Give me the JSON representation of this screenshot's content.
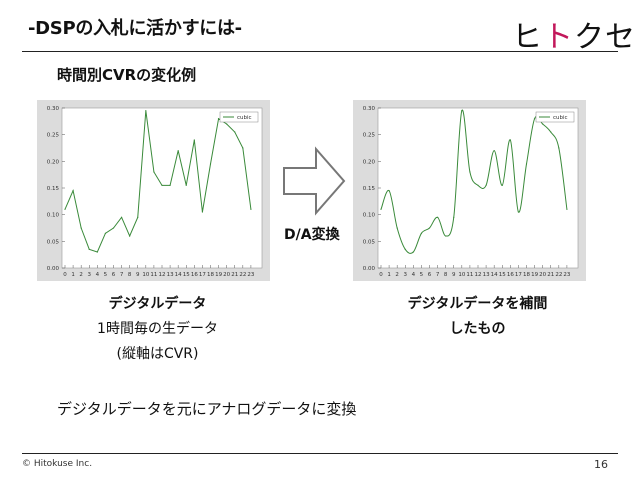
{
  "slide": {
    "title": "-DSPの入札に活かすには-",
    "logo": [
      "ヒ",
      "ト",
      "ク",
      "セ"
    ],
    "subtitle": "時間別CVRの変化例",
    "transform_label": "D/A変換",
    "caption_left": [
      "デジタルデータ",
      "1時間毎の生データ",
      "(縦軸はCVR)"
    ],
    "caption_right": [
      "デジタルデータを補間",
      "したもの"
    ],
    "note": "デジタルデータを元にアナログデータに変換",
    "footer": "© Hitokuse Inc.",
    "page_number": "16"
  },
  "colors": {
    "line": "#3a8a3a",
    "plot_bg": "#ffffff",
    "frame_bg": "#dcdcdc",
    "logo_accent": "#c2185b"
  },
  "chart_data": [
    {
      "type": "line",
      "interpolation": "linear",
      "legend": "cubic",
      "legend_position": "top-right",
      "x": [
        0,
        1,
        2,
        3,
        4,
        5,
        6,
        7,
        8,
        9,
        10,
        11,
        12,
        13,
        14,
        15,
        16,
        17,
        18,
        19,
        20,
        21,
        22,
        23
      ],
      "values": [
        0.11,
        0.145,
        0.075,
        0.035,
        0.03,
        0.065,
        0.075,
        0.095,
        0.06,
        0.095,
        0.295,
        0.18,
        0.155,
        0.155,
        0.22,
        0.155,
        0.24,
        0.105,
        0.195,
        0.28,
        0.27,
        0.255,
        0.225,
        0.11
      ],
      "ylim": [
        0,
        0.3
      ],
      "yticks": [
        "0.00",
        "0.05",
        "0.10",
        "0.15",
        "0.20",
        "0.25",
        "0.30"
      ],
      "xticks": [
        "0",
        "1",
        "2",
        "3",
        "4",
        "5",
        "6",
        "7",
        "8",
        "9",
        "10",
        "11",
        "12",
        "13",
        "14",
        "15",
        "16",
        "17",
        "18",
        "19",
        "20",
        "21",
        "22",
        "23"
      ]
    },
    {
      "type": "line",
      "interpolation": "cubic",
      "legend": "cubic",
      "legend_position": "top-right",
      "x": [
        0,
        1,
        2,
        3,
        4,
        5,
        6,
        7,
        8,
        9,
        10,
        11,
        12,
        13,
        14,
        15,
        16,
        17,
        18,
        19,
        20,
        21,
        22,
        23
      ],
      "values": [
        0.11,
        0.145,
        0.075,
        0.035,
        0.03,
        0.065,
        0.075,
        0.095,
        0.06,
        0.095,
        0.295,
        0.18,
        0.155,
        0.155,
        0.22,
        0.155,
        0.24,
        0.105,
        0.195,
        0.28,
        0.27,
        0.255,
        0.225,
        0.11
      ],
      "ylim": [
        0,
        0.3
      ],
      "yticks": [
        "0.00",
        "0.05",
        "0.10",
        "0.15",
        "0.20",
        "0.25",
        "0.30"
      ],
      "xticks": [
        "0",
        "1",
        "2",
        "3",
        "4",
        "5",
        "6",
        "7",
        "8",
        "9",
        "10",
        "11",
        "12",
        "13",
        "14",
        "15",
        "16",
        "17",
        "18",
        "19",
        "20",
        "21",
        "22",
        "23"
      ]
    }
  ]
}
